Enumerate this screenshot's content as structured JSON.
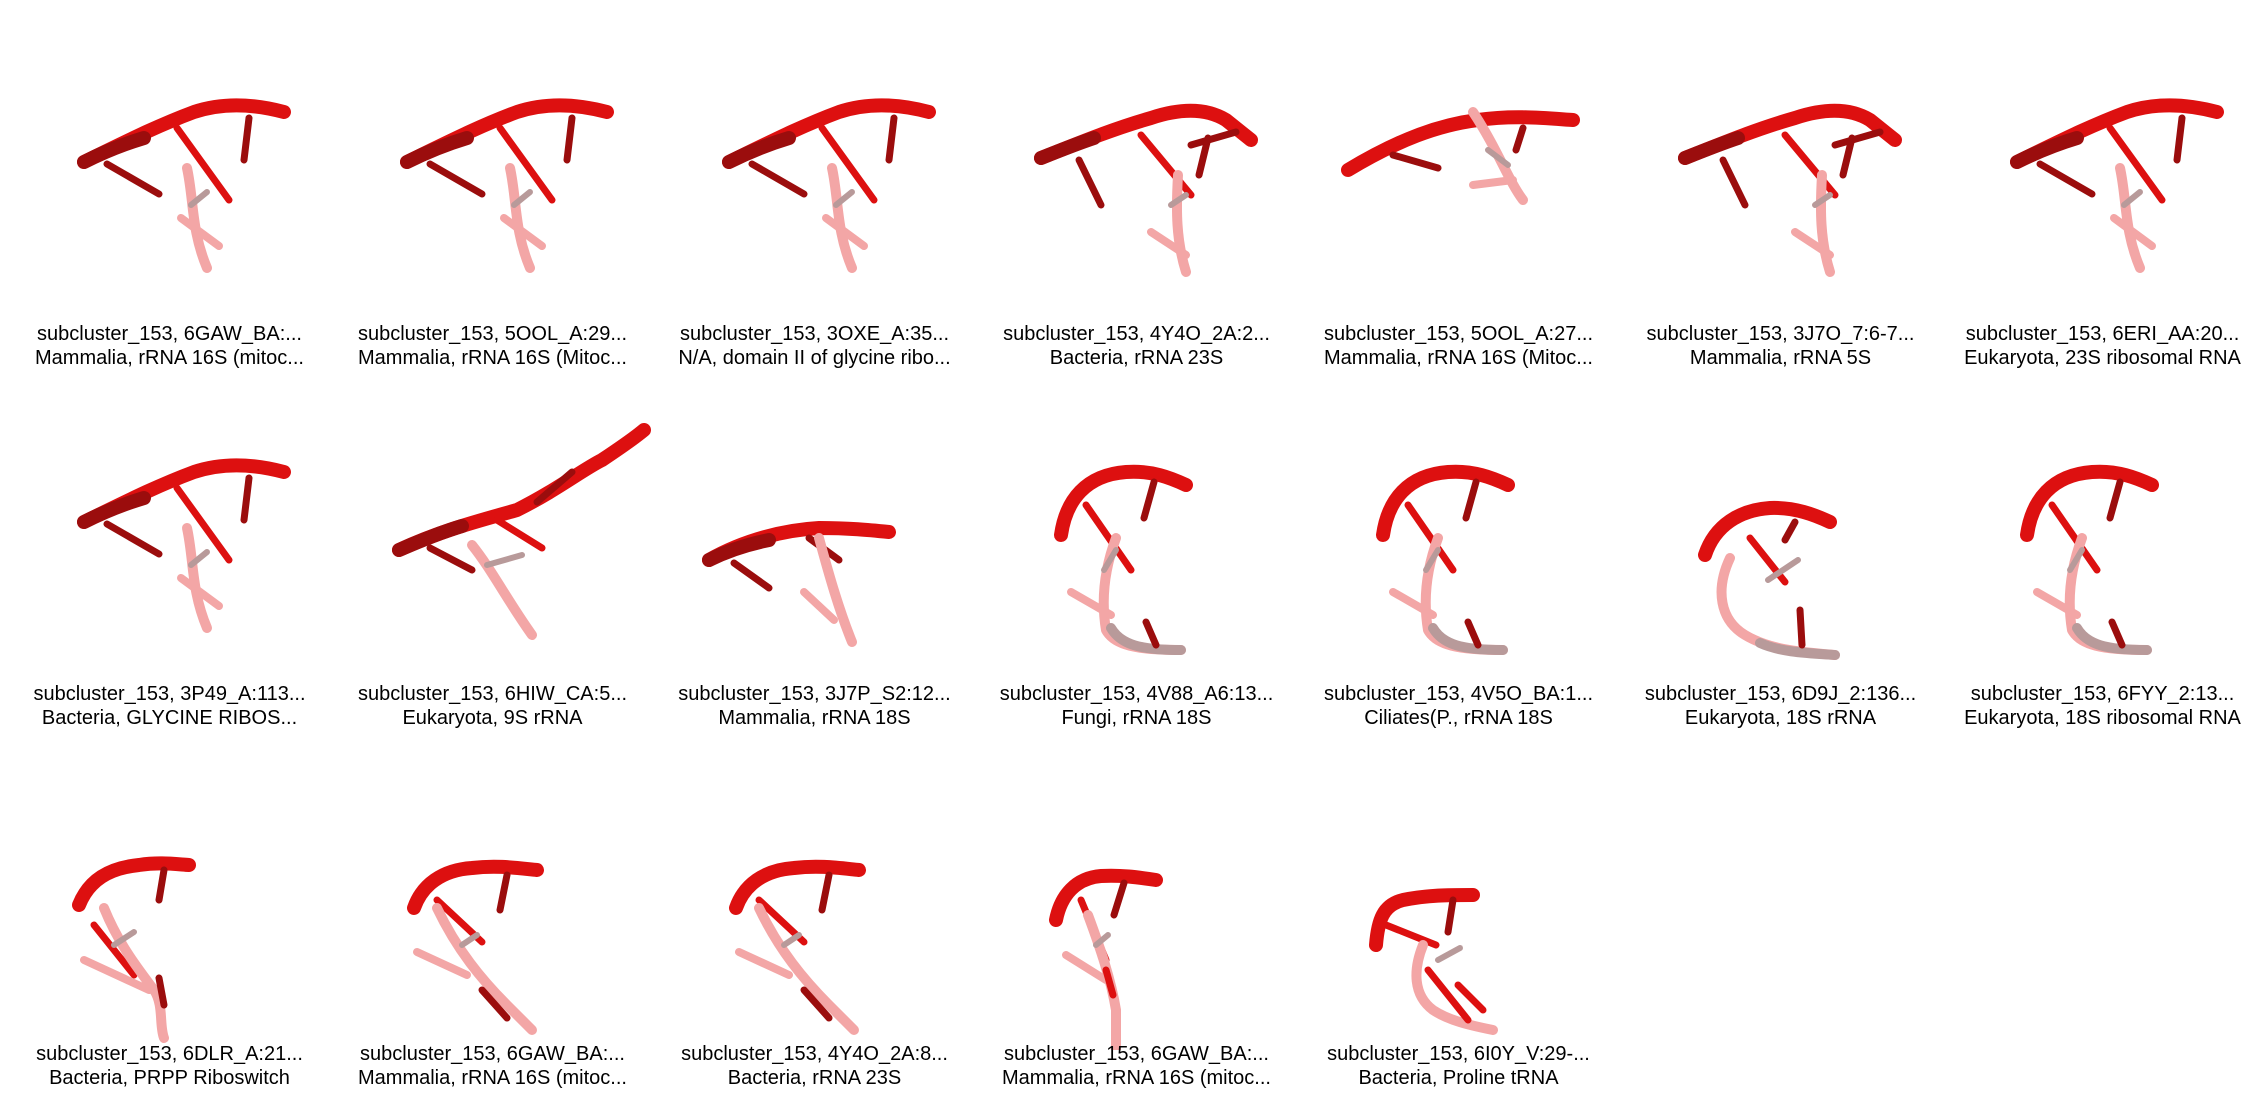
{
  "colors": {
    "dark": "#9b0d0d",
    "mid": "#dd1010",
    "bright": "#ff1a1a",
    "light": "#f3a6a6",
    "gray": "#b89a9a"
  },
  "items": [
    {
      "title": "subcluster_153, 6GAW_BA:...",
      "subtitle": "Mammalia, rRNA 16S (mitoc...",
      "shape": "A"
    },
    {
      "title": "subcluster_153, 5OOL_A:29...",
      "subtitle": "Mammalia, rRNA 16S (Mitoc...",
      "shape": "A"
    },
    {
      "title": "subcluster_153, 3OXE_A:35...",
      "subtitle": "N/A, domain II of glycine ribo...",
      "shape": "A"
    },
    {
      "title": "subcluster_153, 4Y4O_2A:2...",
      "subtitle": "Bacteria, rRNA 23S",
      "shape": "B"
    },
    {
      "title": "subcluster_153, 5OOL_A:27...",
      "subtitle": "Mammalia, rRNA 16S (Mitoc...",
      "shape": "C"
    },
    {
      "title": "subcluster_153, 3J7O_7:6-7...",
      "subtitle": "Mammalia, rRNA 5S",
      "shape": "B"
    },
    {
      "title": "subcluster_153, 6ERI_AA:20...",
      "subtitle": "Eukaryota, 23S ribosomal RNA",
      "shape": "A"
    },
    {
      "title": "subcluster_153, 3P49_A:113...",
      "subtitle": "Bacteria, GLYCINE RIBOS...",
      "shape": "A"
    },
    {
      "title": "subcluster_153, 6HIW_CA:5...",
      "subtitle": "Eukaryota, 9S rRNA",
      "shape": "D"
    },
    {
      "title": "subcluster_153, 3J7P_S2:12...",
      "subtitle": "Mammalia, rRNA 18S",
      "shape": "E"
    },
    {
      "title": "subcluster_153, 4V88_A6:13...",
      "subtitle": "Fungi, rRNA 18S",
      "shape": "F"
    },
    {
      "title": "subcluster_153, 4V5O_BA:1...",
      "subtitle": "Ciliates(P., rRNA 18S",
      "shape": "F"
    },
    {
      "title": "subcluster_153, 6D9J_2:136...",
      "subtitle": "Eukaryota, 18S rRNA",
      "shape": "G"
    },
    {
      "title": "subcluster_153, 6FYY_2:13...",
      "subtitle": "Eukaryota, 18S ribosomal RNA",
      "shape": "F"
    },
    {
      "title": "subcluster_153, 6DLR_A:21...",
      "subtitle": "Bacteria, PRPP Riboswitch",
      "shape": "H"
    },
    {
      "title": "subcluster_153, 6GAW_BA:...",
      "subtitle": "Mammalia, rRNA 16S (mitoc...",
      "shape": "I"
    },
    {
      "title": "subcluster_153, 4Y4O_2A:8...",
      "subtitle": "Bacteria, rRNA 23S",
      "shape": "I"
    },
    {
      "title": "subcluster_153, 6GAW_BA:...",
      "subtitle": "Mammalia, rRNA 16S (mitoc...",
      "shape": "J"
    },
    {
      "title": "subcluster_153, 6I0Y_V:29-...",
      "subtitle": "Bacteria, Proline tRNA",
      "shape": "K"
    }
  ]
}
